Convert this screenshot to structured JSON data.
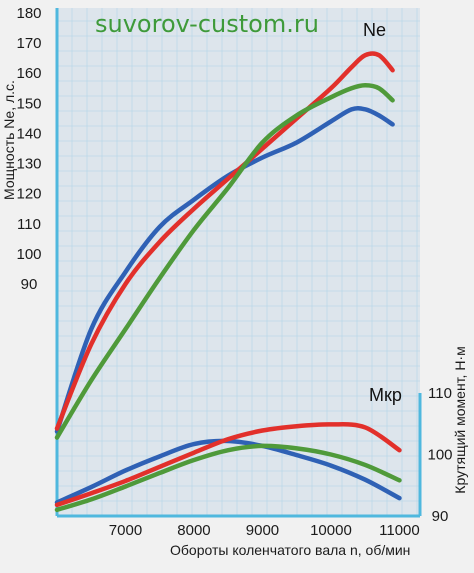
{
  "watermark": "suvorov-custom.ru",
  "chart_data": {
    "type": "line",
    "title": "",
    "xlabel": "Обороты коленчатого вала n, об/мин",
    "ylabel_left": "Мощность Ne, л.с.",
    "ylabel_right": "Крутящий момент, Н·м",
    "x_ticks": [
      "7000",
      "8000",
      "9000",
      "10000",
      "11000"
    ],
    "y_ticks_left": [
      "90",
      "100",
      "110",
      "120",
      "130",
      "140",
      "150",
      "160",
      "170",
      "180"
    ],
    "y_ticks_right": [
      "90",
      "100",
      "110"
    ],
    "xlim": [
      6000,
      11300
    ],
    "ylim_left": [
      90,
      180
    ],
    "ylim_right": [
      90,
      110
    ],
    "grid": true,
    "legend": "none",
    "curve_labels": {
      "power": "Ne",
      "torque": "Мкр"
    },
    "colors": {
      "blue": "#2f61b5",
      "red": "#e2302b",
      "green": "#4f9a3a",
      "axis": "#4fb8de",
      "grid": "#bcd8ea"
    },
    "power": [
      {
        "color": "blue",
        "x": [
          6000,
          6500,
          7000,
          7500,
          8000,
          8500,
          9000,
          9500,
          10000,
          10300,
          10500,
          10700,
          10900
        ],
        "y": [
          41,
          75,
          94,
          109,
          118,
          126,
          132,
          137,
          144,
          148,
          148,
          146,
          143
        ]
      },
      {
        "color": "red",
        "x": [
          6000,
          6500,
          7000,
          7500,
          8000,
          8500,
          9000,
          9500,
          10000,
          10300,
          10500,
          10700,
          10900
        ],
        "y": [
          42,
          70,
          90,
          104,
          115,
          125,
          135,
          145,
          155,
          162,
          166,
          166,
          161
        ]
      },
      {
        "color": "green",
        "x": [
          6000,
          6500,
          7000,
          7500,
          8000,
          8500,
          9000,
          9500,
          10000,
          10300,
          10500,
          10700,
          10900
        ],
        "y": [
          39,
          58,
          75,
          92,
          108,
          122,
          137,
          146,
          152,
          155,
          156,
          155,
          151
        ]
      }
    ],
    "torque": [
      {
        "color": "blue",
        "x": [
          6000,
          6500,
          7000,
          7500,
          8000,
          8500,
          9000,
          9500,
          10000,
          10500,
          11000
        ],
        "y": [
          92.2,
          94.7,
          97.4,
          99.7,
          101.7,
          102.2,
          101.4,
          99.9,
          98.2,
          95.9,
          92.9
        ]
      },
      {
        "color": "red",
        "x": [
          6000,
          6500,
          7000,
          7500,
          8000,
          8500,
          9000,
          9500,
          10000,
          10500,
          11000
        ],
        "y": [
          91.8,
          93.7,
          95.7,
          98.0,
          100.3,
          102.5,
          103.9,
          104.6,
          104.9,
          104.4,
          100.7
        ]
      },
      {
        "color": "green",
        "x": [
          6000,
          6500,
          7000,
          7500,
          8000,
          8500,
          9000,
          9500,
          10000,
          10500,
          11000
        ],
        "y": [
          91.0,
          92.7,
          94.8,
          97.0,
          99.1,
          100.7,
          101.4,
          101.0,
          100.0,
          98.3,
          95.8
        ]
      }
    ]
  }
}
